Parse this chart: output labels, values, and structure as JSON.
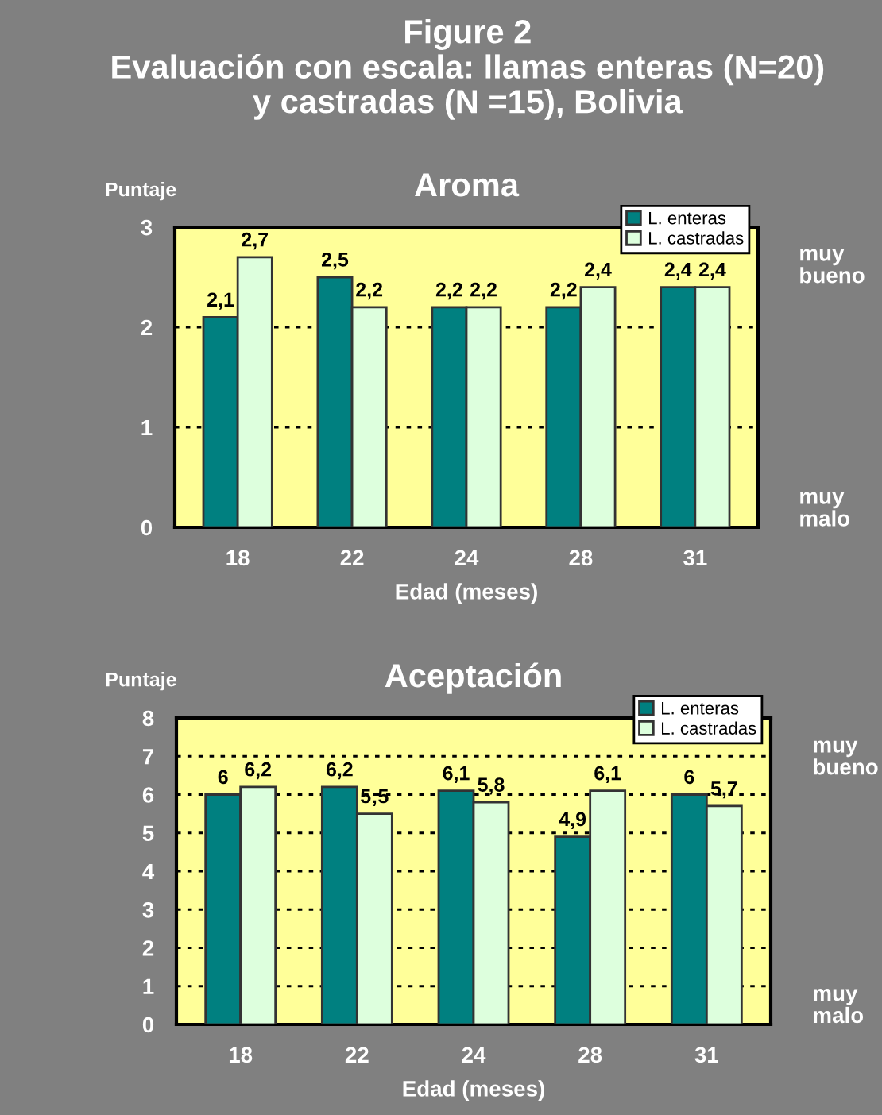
{
  "chart_data": [
    {
      "type": "bar",
      "title": "Aroma",
      "xlabel": "Edad (meses)",
      "ylabel": "Puntaje",
      "categories": [
        "18",
        "22",
        "24",
        "28",
        "31"
      ],
      "series": [
        {
          "name": "L. enteras",
          "color": "#008080",
          "values": [
            2.1,
            2.5,
            2.2,
            2.2,
            2.4
          ],
          "value_labels": [
            "2,1",
            "2,5",
            "2,2",
            "2,2",
            "2,4"
          ]
        },
        {
          "name": "L. castradas",
          "color": "#ddffdd",
          "values": [
            2.7,
            2.2,
            2.2,
            2.4,
            2.4
          ],
          "value_labels": [
            "2,7",
            "2,2",
            "2,2",
            "2,4",
            "2,4"
          ]
        }
      ],
      "ylim": [
        0,
        3
      ],
      "yticks": [
        0,
        1,
        2,
        3
      ],
      "grid": "y",
      "legend": "top right",
      "annotations": [
        "Figure 2",
        "Evaluación con escala: llamas enteras (N=20)",
        "y castradas (N =15), Bolivia",
        "muy\nbueno",
        "muy\nmalo"
      ]
    },
    {
      "type": "bar",
      "title": "Aceptación",
      "xlabel": "Edad (meses)",
      "ylabel": "Puntaje",
      "categories": [
        "18",
        "22",
        "24",
        "28",
        "31"
      ],
      "series": [
        {
          "name": "L. enteras",
          "color": "#008080",
          "values": [
            6,
            6.2,
            6.1,
            4.9,
            6
          ],
          "value_labels": [
            "6",
            "6,2",
            "6,1",
            "4,9",
            "6"
          ]
        },
        {
          "name": "L. castradas",
          "color": "#ddffdd",
          "values": [
            6.2,
            5.5,
            5.8,
            6.1,
            5.7
          ],
          "value_labels": [
            "6,2",
            "5;5",
            "5,8",
            "6,1",
            "5,7"
          ]
        }
      ],
      "ylim": [
        0,
        8
      ],
      "yticks": [
        0,
        1,
        2,
        3,
        4,
        5,
        6,
        7,
        8
      ],
      "grid": "y",
      "legend": "top right",
      "annotations": [
        "muy\nbueno",
        "muy\nmalo"
      ]
    }
  ]
}
